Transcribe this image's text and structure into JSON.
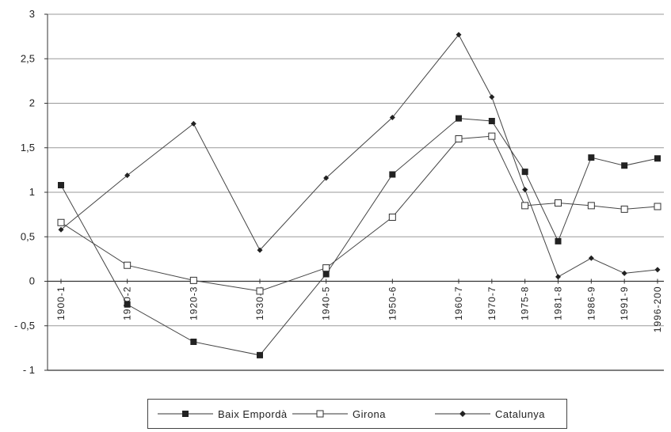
{
  "chart_data": {
    "type": "line",
    "categories": [
      "1900-1",
      "1910-2",
      "1920-3",
      "1930-4",
      "1940-5",
      "1950-6",
      "1960-7",
      "1970-7",
      "1975-8",
      "1981-8",
      "1986-9",
      "1991-9",
      "1996-200"
    ],
    "x": [
      1900,
      1910,
      1920,
      1930,
      1940,
      1950,
      1960,
      1965,
      1970,
      1975,
      1980,
      1985,
      1990
    ],
    "ylim": [
      -1,
      3
    ],
    "yticks": [
      3,
      2.5,
      2,
      1.5,
      1,
      0.5,
      0,
      -0.5,
      -1
    ],
    "ytick_labels": [
      "3",
      "2,5",
      "2",
      "1,5",
      "1",
      "0,5",
      "0",
      "- 0,5",
      "- 1"
    ],
    "grid": "horizontal",
    "legend_position": "bottom",
    "series": [
      {
        "name": "Baix Empordà",
        "marker": "filled-square",
        "points": [
          [
            1900,
            1.08
          ],
          [
            1910,
            -0.26
          ],
          [
            1920,
            -0.68
          ],
          [
            1930,
            -0.83
          ],
          [
            1940,
            0.08
          ],
          [
            1950,
            1.2
          ],
          [
            1960,
            1.83
          ],
          [
            1965,
            1.8
          ],
          [
            1970,
            1.23
          ],
          [
            1975,
            0.45
          ],
          [
            1980,
            1.39
          ],
          [
            1985,
            1.3
          ],
          [
            1990,
            1.38
          ]
        ]
      },
      {
        "name": "Girona",
        "marker": "open-square",
        "points": [
          [
            1900,
            0.66
          ],
          [
            1910,
            0.18
          ],
          [
            1920,
            0.01
          ],
          [
            1930,
            -0.11
          ],
          [
            1940,
            0.15
          ],
          [
            1950,
            0.72
          ],
          [
            1960,
            1.6
          ],
          [
            1965,
            1.63
          ],
          [
            1970,
            0.85
          ],
          [
            1975,
            0.88
          ],
          [
            1980,
            0.85
          ],
          [
            1985,
            0.81
          ],
          [
            1990,
            0.84
          ]
        ]
      },
      {
        "name": "Catalunya",
        "marker": "filled-diamond",
        "points": [
          [
            1900,
            0.58
          ],
          [
            1910,
            1.19
          ],
          [
            1920,
            1.77
          ],
          [
            1930,
            0.35
          ],
          [
            1940,
            1.16
          ],
          [
            1950,
            1.84
          ],
          [
            1960,
            2.77
          ],
          [
            1965,
            2.07
          ],
          [
            1970,
            1.03
          ],
          [
            1975,
            0.05
          ],
          [
            1980,
            0.26
          ],
          [
            1985,
            0.09
          ],
          [
            1990,
            0.13
          ]
        ]
      }
    ]
  }
}
